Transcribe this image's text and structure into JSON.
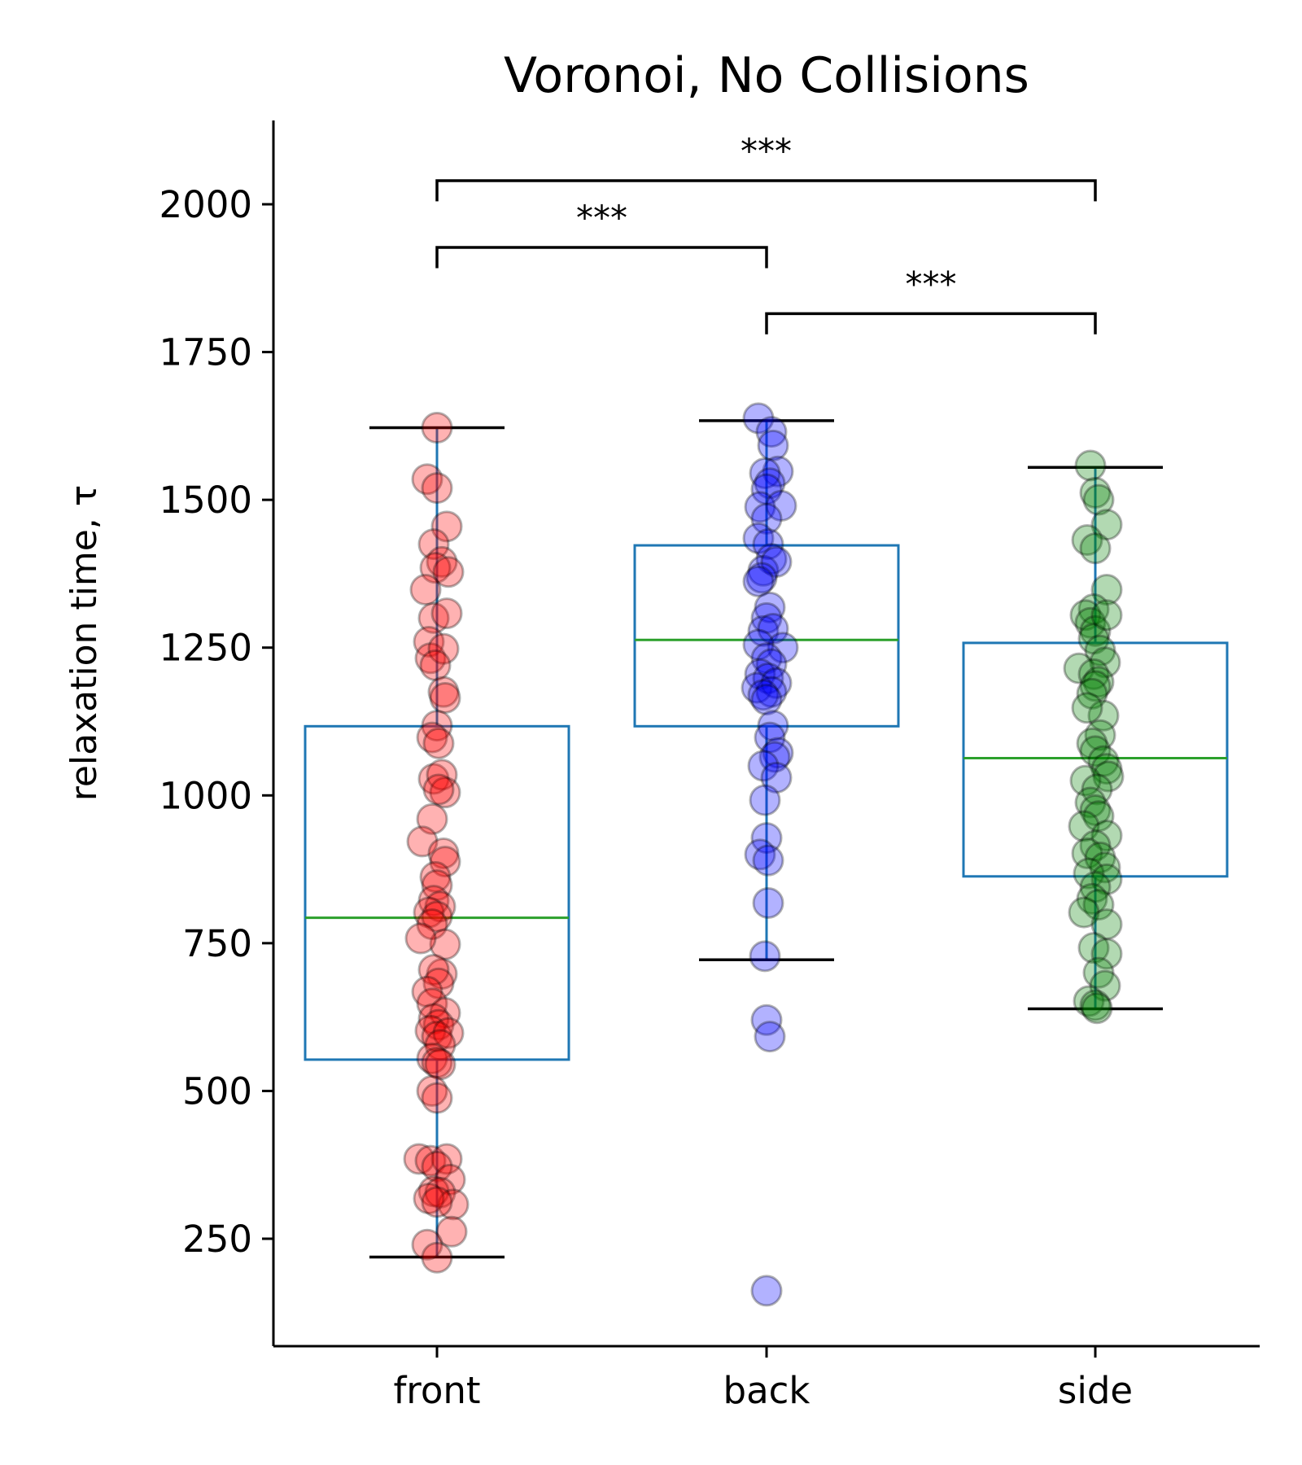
{
  "chart_data": {
    "type": "box",
    "title": "Voronoi, No Collisions",
    "xlabel": "",
    "ylabel": "relaxation time, τ",
    "categories": [
      "front",
      "back",
      "side"
    ],
    "ylim": [
      75,
      2140
    ],
    "yticks": [
      250,
      500,
      750,
      1000,
      1250,
      1500,
      1750,
      2000
    ],
    "box_color": "#1f77b4",
    "median_color": "#2ca02c",
    "whisker_cap_color": "#000000",
    "boxes": [
      {
        "category": "front",
        "q1": 553,
        "median": 793,
        "q3": 1117,
        "whisker_low": 219,
        "whisker_high": 1622
      },
      {
        "category": "back",
        "q1": 1117,
        "median": 1263,
        "q3": 1423,
        "whisker_low": 722,
        "whisker_high": 1634
      },
      {
        "category": "side",
        "q1": 863,
        "median": 1063,
        "q3": 1258,
        "whisker_low": 639,
        "whisker_high": 1555
      }
    ],
    "series": [
      {
        "name": "front",
        "color": "#ff0000",
        "points": [
          [
            0.0,
            1622
          ],
          [
            -0.06,
            1535
          ],
          [
            0.0,
            1520
          ],
          [
            0.06,
            1455
          ],
          [
            -0.02,
            1425
          ],
          [
            0.03,
            1395
          ],
          [
            -0.01,
            1385
          ],
          [
            0.07,
            1378
          ],
          [
            -0.07,
            1348
          ],
          [
            -0.02,
            1300
          ],
          [
            0.06,
            1308
          ],
          [
            -0.05,
            1260
          ],
          [
            -0.04,
            1232
          ],
          [
            0.04,
            1248
          ],
          [
            -0.01,
            1220
          ],
          [
            0.04,
            1175
          ],
          [
            0.05,
            1165
          ],
          [
            0.0,
            1118
          ],
          [
            -0.03,
            1098
          ],
          [
            0.01,
            1088
          ],
          [
            -0.02,
            1028
          ],
          [
            0.03,
            1035
          ],
          [
            0.05,
            1005
          ],
          [
            0.01,
            1010
          ],
          [
            -0.03,
            960
          ],
          [
            -0.09,
            922
          ],
          [
            0.04,
            902
          ],
          [
            0.05,
            888
          ],
          [
            -0.01,
            862
          ],
          [
            0.0,
            848
          ],
          [
            -0.02,
            822
          ],
          [
            0.02,
            812
          ],
          [
            -0.05,
            802
          ],
          [
            0.0,
            795
          ],
          [
            -0.03,
            782
          ],
          [
            0.05,
            748
          ],
          [
            -0.1,
            758
          ],
          [
            0.03,
            698
          ],
          [
            -0.02,
            705
          ],
          [
            0.01,
            682
          ],
          [
            -0.06,
            668
          ],
          [
            -0.03,
            648
          ],
          [
            0.05,
            632
          ],
          [
            -0.02,
            622
          ],
          [
            0.01,
            612
          ],
          [
            -0.04,
            602
          ],
          [
            0.0,
            592
          ],
          [
            0.07,
            598
          ],
          [
            0.02,
            578
          ],
          [
            -0.03,
            555
          ],
          [
            0.0,
            548
          ],
          [
            0.02,
            545
          ],
          [
            -0.03,
            500
          ],
          [
            0.0,
            488
          ],
          [
            -0.11,
            385
          ],
          [
            -0.04,
            382
          ],
          [
            0.06,
            385
          ],
          [
            0.0,
            372
          ],
          [
            0.08,
            350
          ],
          [
            -0.02,
            330
          ],
          [
            0.02,
            328
          ],
          [
            0.1,
            308
          ],
          [
            -0.05,
            318
          ],
          [
            0.0,
            312
          ],
          [
            0.09,
            262
          ],
          [
            -0.06,
            240
          ],
          [
            0.0,
            218
          ]
        ]
      },
      {
        "name": "back",
        "color": "#0000ff",
        "points": [
          [
            -0.05,
            1638
          ],
          [
            0.03,
            1615
          ],
          [
            0.04,
            1592
          ],
          [
            0.07,
            1548
          ],
          [
            -0.01,
            1545
          ],
          [
            0.02,
            1528
          ],
          [
            0.0,
            1518
          ],
          [
            -0.04,
            1488
          ],
          [
            0.09,
            1490
          ],
          [
            0.0,
            1468
          ],
          [
            -0.05,
            1435
          ],
          [
            0.01,
            1425
          ],
          [
            0.03,
            1400
          ],
          [
            -0.02,
            1380
          ],
          [
            0.06,
            1395
          ],
          [
            -0.03,
            1368
          ],
          [
            -0.05,
            1362
          ],
          [
            0.02,
            1318
          ],
          [
            0.0,
            1300
          ],
          [
            -0.02,
            1278
          ],
          [
            0.04,
            1282
          ],
          [
            0.1,
            1250
          ],
          [
            -0.05,
            1255
          ],
          [
            0.0,
            1232
          ],
          [
            0.03,
            1222
          ],
          [
            -0.04,
            1205
          ],
          [
            0.01,
            1198
          ],
          [
            -0.06,
            1182
          ],
          [
            0.06,
            1190
          ],
          [
            0.03,
            1175
          ],
          [
            -0.02,
            1170
          ],
          [
            0.0,
            1162
          ],
          [
            0.04,
            1118
          ],
          [
            0.02,
            1098
          ],
          [
            0.07,
            1072
          ],
          [
            0.05,
            1065
          ],
          [
            -0.02,
            1050
          ],
          [
            0.06,
            1030
          ],
          [
            -0.01,
            992
          ],
          [
            0.0,
            928
          ],
          [
            -0.04,
            900
          ],
          [
            0.01,
            890
          ],
          [
            0.01,
            818
          ],
          [
            -0.01,
            728
          ],
          [
            0.0,
            620
          ],
          [
            0.02,
            592
          ],
          [
            0.0,
            162
          ]
        ]
      },
      {
        "name": "side",
        "color": "#008000",
        "points": [
          [
            -0.03,
            1558
          ],
          [
            0.0,
            1512
          ],
          [
            0.02,
            1500
          ],
          [
            0.07,
            1458
          ],
          [
            -0.05,
            1432
          ],
          [
            0.0,
            1418
          ],
          [
            0.07,
            1348
          ],
          [
            -0.01,
            1315
          ],
          [
            -0.06,
            1305
          ],
          [
            -0.03,
            1292
          ],
          [
            0.0,
            1278
          ],
          [
            -0.01,
            1265
          ],
          [
            0.07,
            1305
          ],
          [
            0.03,
            1245
          ],
          [
            0.06,
            1225
          ],
          [
            -0.1,
            1215
          ],
          [
            -0.01,
            1205
          ],
          [
            0.02,
            1192
          ],
          [
            0.0,
            1185
          ],
          [
            -0.02,
            1172
          ],
          [
            0.05,
            1135
          ],
          [
            -0.05,
            1148
          ],
          [
            0.03,
            1102
          ],
          [
            -0.02,
            1088
          ],
          [
            0.0,
            1075
          ],
          [
            0.05,
            1058
          ],
          [
            0.07,
            1045
          ],
          [
            0.08,
            1032
          ],
          [
            -0.06,
            1025
          ],
          [
            0.01,
            1010
          ],
          [
            -0.03,
            988
          ],
          [
            0.0,
            975
          ],
          [
            0.02,
            965
          ],
          [
            -0.07,
            948
          ],
          [
            0.07,
            932
          ],
          [
            0.0,
            915
          ],
          [
            -0.05,
            902
          ],
          [
            0.03,
            895
          ],
          [
            0.06,
            878
          ],
          [
            -0.04,
            868
          ],
          [
            0.07,
            858
          ],
          [
            0.0,
            845
          ],
          [
            -0.02,
            825
          ],
          [
            0.02,
            815
          ],
          [
            -0.07,
            802
          ],
          [
            0.07,
            782
          ],
          [
            -0.01,
            742
          ],
          [
            0.07,
            732
          ],
          [
            0.02,
            700
          ],
          [
            0.06,
            678
          ],
          [
            -0.04,
            652
          ],
          [
            0.0,
            645
          ],
          [
            0.01,
            640
          ]
        ]
      }
    ],
    "significance": [
      {
        "from": "front",
        "to": "side",
        "label": "***",
        "y": 2040,
        "drop": 35
      },
      {
        "from": "front",
        "to": "back",
        "label": "***",
        "y": 1927,
        "drop": 35
      },
      {
        "from": "back",
        "to": "side",
        "label": "***",
        "y": 1815,
        "drop": 35
      }
    ]
  }
}
